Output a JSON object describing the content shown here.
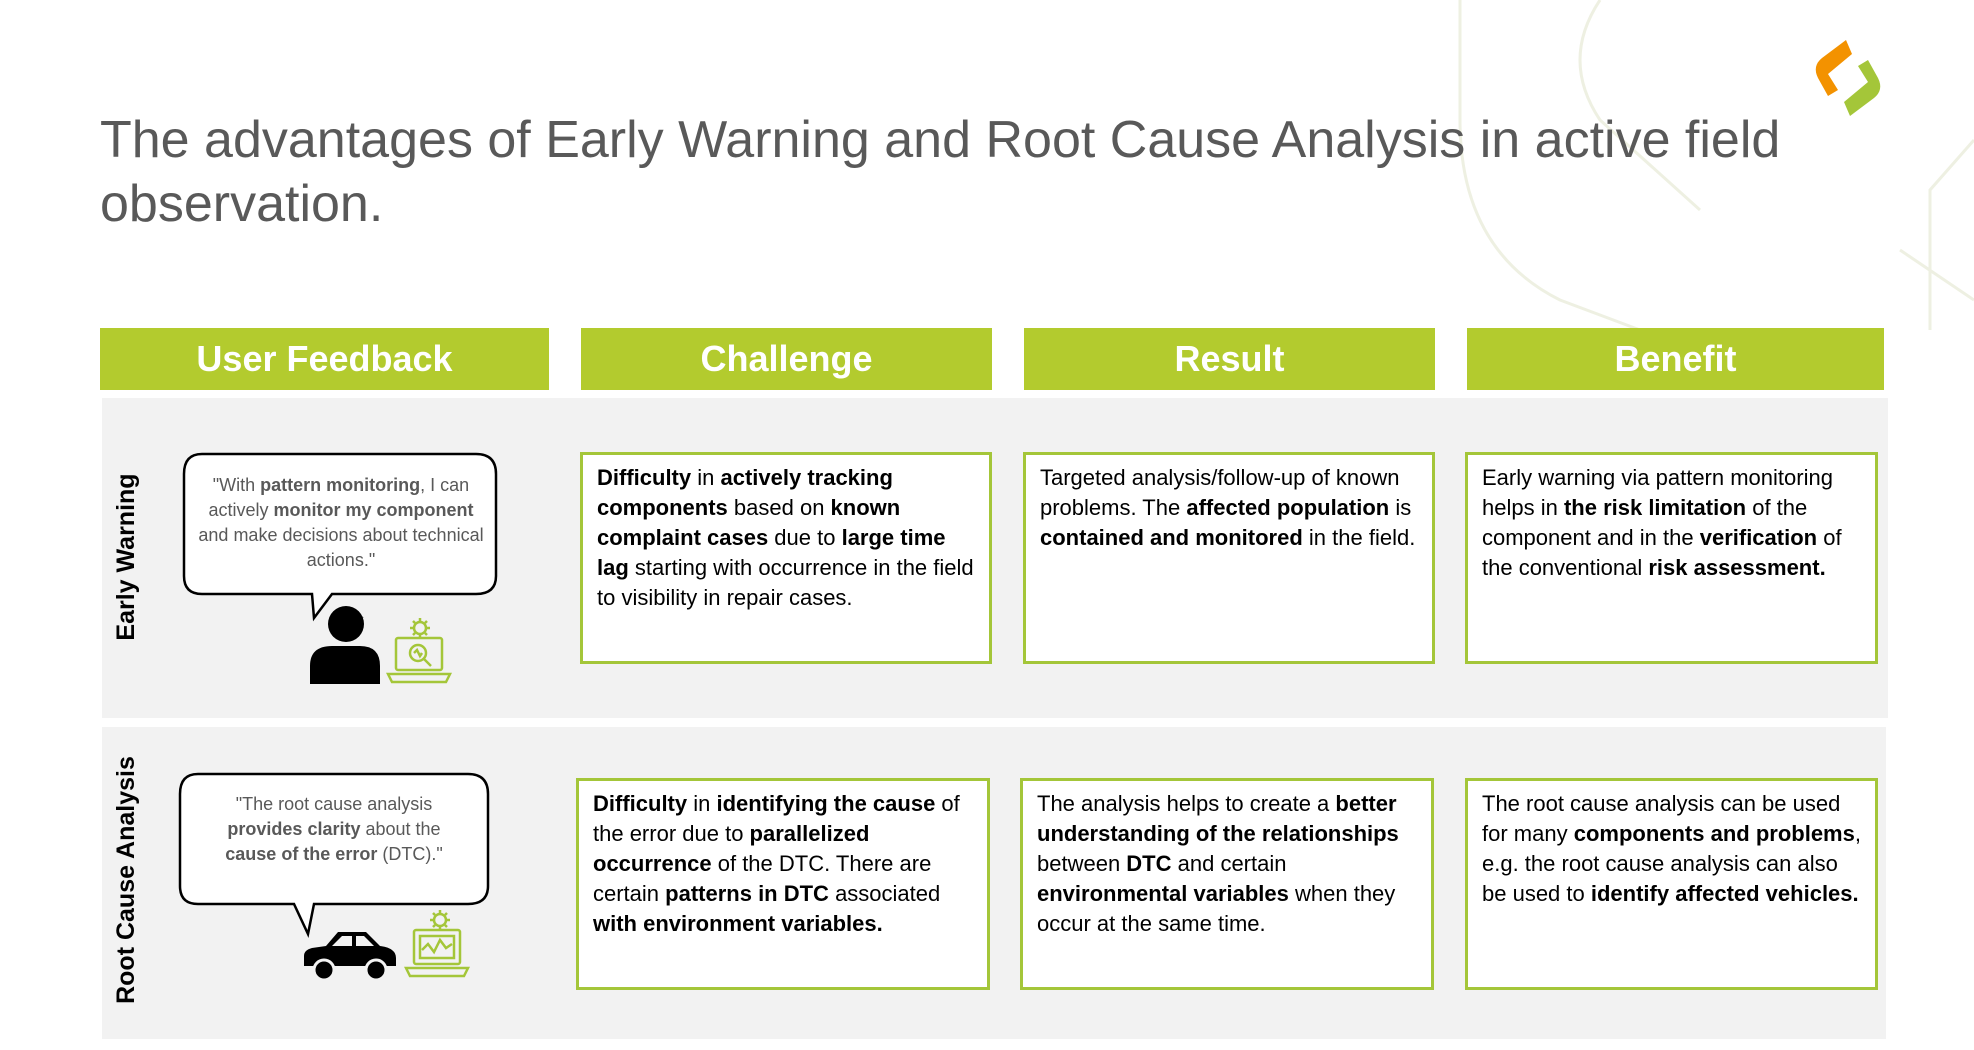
{
  "title": "The advantages of Early Warning and Root Cause Analysis in active field observation.",
  "colors": {
    "accent": "#b3cb2e",
    "border": "#a4c639",
    "band": "#f2f2f2",
    "logo_orange": "#f39200",
    "logo_green": "#a4c639"
  },
  "columns": [
    "User Feedback",
    "Challenge",
    "Result",
    "Benefit"
  ],
  "rows": [
    {
      "label": "Early Warning",
      "icon": "user-with-laptop-icon",
      "quote": [
        {
          "t": "\"With ",
          "b": false
        },
        {
          "t": "pattern monitoring",
          "b": true
        },
        {
          "t": ", I can actively ",
          "b": false
        },
        {
          "t": "monitor my component",
          "b": true
        },
        {
          "t": " and make decisions about technical actions.\"",
          "b": false
        }
      ],
      "challenge": [
        {
          "t": "Difficulty",
          "b": true
        },
        {
          "t": " in ",
          "b": false
        },
        {
          "t": "actively tracking components",
          "b": true
        },
        {
          "t": " based on ",
          "b": false
        },
        {
          "t": "known complaint cases",
          "b": true
        },
        {
          "t": " due to ",
          "b": false
        },
        {
          "t": "large time lag",
          "b": true
        },
        {
          "t": " starting with occurrence in the field to visibility in repair cases.",
          "b": false
        }
      ],
      "result": [
        {
          "t": "Targeted analysis/follow-up of known problems. The ",
          "b": false
        },
        {
          "t": "affected population",
          "b": true
        },
        {
          "t": " is ",
          "b": false
        },
        {
          "t": "contained and monitored",
          "b": true
        },
        {
          "t": " in the field.",
          "b": false
        }
      ],
      "benefit": [
        {
          "t": "Early warning via pattern monitoring helps in ",
          "b": false
        },
        {
          "t": "the risk limitation",
          "b": true
        },
        {
          "t": " of the component and in the ",
          "b": false
        },
        {
          "t": "verification",
          "b": true
        },
        {
          "t": " of the conventional ",
          "b": false
        },
        {
          "t": "risk assessment.",
          "b": true
        }
      ]
    },
    {
      "label": "Root Cause Analysis",
      "icon": "car-with-laptop-icon",
      "quote": [
        {
          "t": "\"The root cause analysis ",
          "b": false
        },
        {
          "t": "provides clarity",
          "b": true
        },
        {
          "t": " about the ",
          "b": false
        },
        {
          "t": "cause of the error",
          "b": true
        },
        {
          "t": " (DTC).\"",
          "b": false
        }
      ],
      "challenge": [
        {
          "t": "Difficulty",
          "b": true
        },
        {
          "t": " in ",
          "b": false
        },
        {
          "t": "identifying the cause",
          "b": true
        },
        {
          "t": " of the error due to ",
          "b": false
        },
        {
          "t": "parallelized occurrence",
          "b": true
        },
        {
          "t": " of the DTC. There are certain ",
          "b": false
        },
        {
          "t": "patterns in DTC",
          "b": true
        },
        {
          "t": " associated ",
          "b": false
        },
        {
          "t": "with environment variables.",
          "b": true
        }
      ],
      "result": [
        {
          "t": "The analysis helps to create a ",
          "b": false
        },
        {
          "t": "better understanding of the relationships",
          "b": true
        },
        {
          "t": " between ",
          "b": false
        },
        {
          "t": "DTC",
          "b": true
        },
        {
          "t": " and certain ",
          "b": false
        },
        {
          "t": "environmental variables",
          "b": true
        },
        {
          "t": " when they occur at the same time.",
          "b": false
        }
      ],
      "benefit": [
        {
          "t": "The root cause analysis can be used for many ",
          "b": false
        },
        {
          "t": "components and problems",
          "b": true
        },
        {
          "t": ", e.g. the root cause analysis can also be used to ",
          "b": false
        },
        {
          "t": "identify affected vehicles.",
          "b": true
        }
      ]
    }
  ]
}
